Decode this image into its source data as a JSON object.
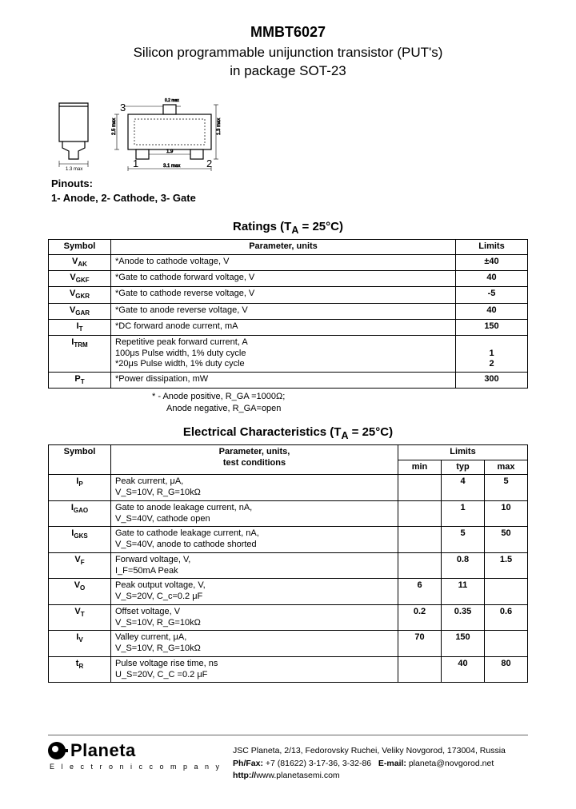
{
  "header": {
    "part": "MMBT6027",
    "line1": "Silicon  programmable  unijunction  transistor  (PUT's)",
    "line2": "in  package  SOT-23"
  },
  "pinouts": {
    "label": "Pinouts:",
    "line": "1- Anode,   2- Cathode,   3- Gate"
  },
  "ratings": {
    "title": "Ratings (T",
    "title_sub": "A",
    "title_tail": " = 25°C)",
    "headers": {
      "symbol": "Symbol",
      "param": "Parameter, units",
      "limits": "Limits"
    },
    "rows": [
      {
        "sym": "V",
        "sub": "AK",
        "param": "*Anode to cathode voltage, V",
        "lim": "±40"
      },
      {
        "sym": "V",
        "sub": "GKF",
        "param": "*Gate to cathode forward voltage, V",
        "lim": "40"
      },
      {
        "sym": "V",
        "sub": "GKR",
        "param": "*Gate to cathode reverse voltage, V",
        "lim": "-5"
      },
      {
        "sym": "V",
        "sub": "GAR",
        "param": "*Gate to anode reverse voltage, V",
        "lim": "40"
      },
      {
        "sym": "I",
        "sub": "T",
        "param": "*DC forward anode current, mA",
        "lim": "150"
      },
      {
        "sym": "I",
        "sub": "TRM",
        "param": "Repetitive peak forward current, A\n100μs Pulse width, 1% duty cycle\n*20μs Pulse width, 1% duty cycle",
        "lim": "\n1\n2"
      },
      {
        "sym": "P",
        "sub": "T",
        "param": "*Power dissipation, mW",
        "lim": "300"
      }
    ],
    "footnote1": "* - Anode positive,  R_GA =1000Ω;",
    "footnote2": "Anode negative, R_GA=open"
  },
  "elec": {
    "title": "Electrical Characteristics  (T",
    "title_sub": "A",
    "title_tail": " = 25°C)",
    "headers": {
      "symbol": "Symbol",
      "param": "Parameter, units,\ntest conditions",
      "limits": "Limits",
      "min": "min",
      "typ": "typ",
      "max": "max"
    },
    "rows": [
      {
        "sym": "I",
        "sub": "P",
        "param": "Peak current, μA,\nV_S=10V, R_G=10kΩ",
        "min": "",
        "typ": "4",
        "max": "5"
      },
      {
        "sym": "I",
        "sub": "GAO",
        "param": "Gate to anode leakage current, nA,\nV_S=40V, cathode open",
        "min": "",
        "typ": "1",
        "max": "10"
      },
      {
        "sym": "I",
        "sub": "GKS",
        "param": "Gate to cathode leakage current, nA,\nV_S=40V, anode to cathode shorted",
        "min": "",
        "typ": "5",
        "max": "50"
      },
      {
        "sym": "V",
        "sub": "F",
        "param": "Forward voltage, V,\n            I_F=50mA Peak",
        "min": "",
        "typ": "0.8",
        "max": "1.5"
      },
      {
        "sym": "V",
        "sub": "O",
        "param": "Peak output voltage, V,\nV_S=20V, C_c=0.2 μF",
        "min": "6",
        "typ": "11",
        "max": ""
      },
      {
        "sym": "V",
        "sub": "T",
        "param": "Offset voltage, V\nV_S=10V, R_G=10kΩ",
        "min": "0.2",
        "typ": "0.35",
        "max": "0.6"
      },
      {
        "sym": "I",
        "sub": "V",
        "param": "Valley current, μA,\nV_S=10V, R_G=10kΩ",
        "min": "70",
        "typ": "150",
        "max": ""
      },
      {
        "sym": "t",
        "sub": "R",
        "param": "Pulse voltage rise time, ns\nU_S=20V, C_C =0.2 μF",
        "min": "",
        "typ": "40",
        "max": "80"
      }
    ]
  },
  "footer": {
    "company": "Planeta",
    "tagline": "E l e c t r o n i c   c o m p a n y",
    "addr": "JSC Planeta, 2/13, Fedorovsky Ruchei, Veliky Novgorod, 173004, Russia",
    "contact_label": "Ph/Fax:",
    "phone": "+7 (81622) 3-17-36, 3-32-86",
    "email_label": "E-mail:",
    "email": "planeta@novgorod.net",
    "url_label": "http://",
    "url": "www.planetasemi.com"
  },
  "pkg": {
    "pin1": "1",
    "pin2": "2",
    "pin3": "3",
    "dim1": "1.3 max",
    "dim2": "2.5 max",
    "dim3": "0.2 max",
    "dim4": "1.3 max",
    "dim5": "1.9",
    "dim6": "3.1 max"
  }
}
